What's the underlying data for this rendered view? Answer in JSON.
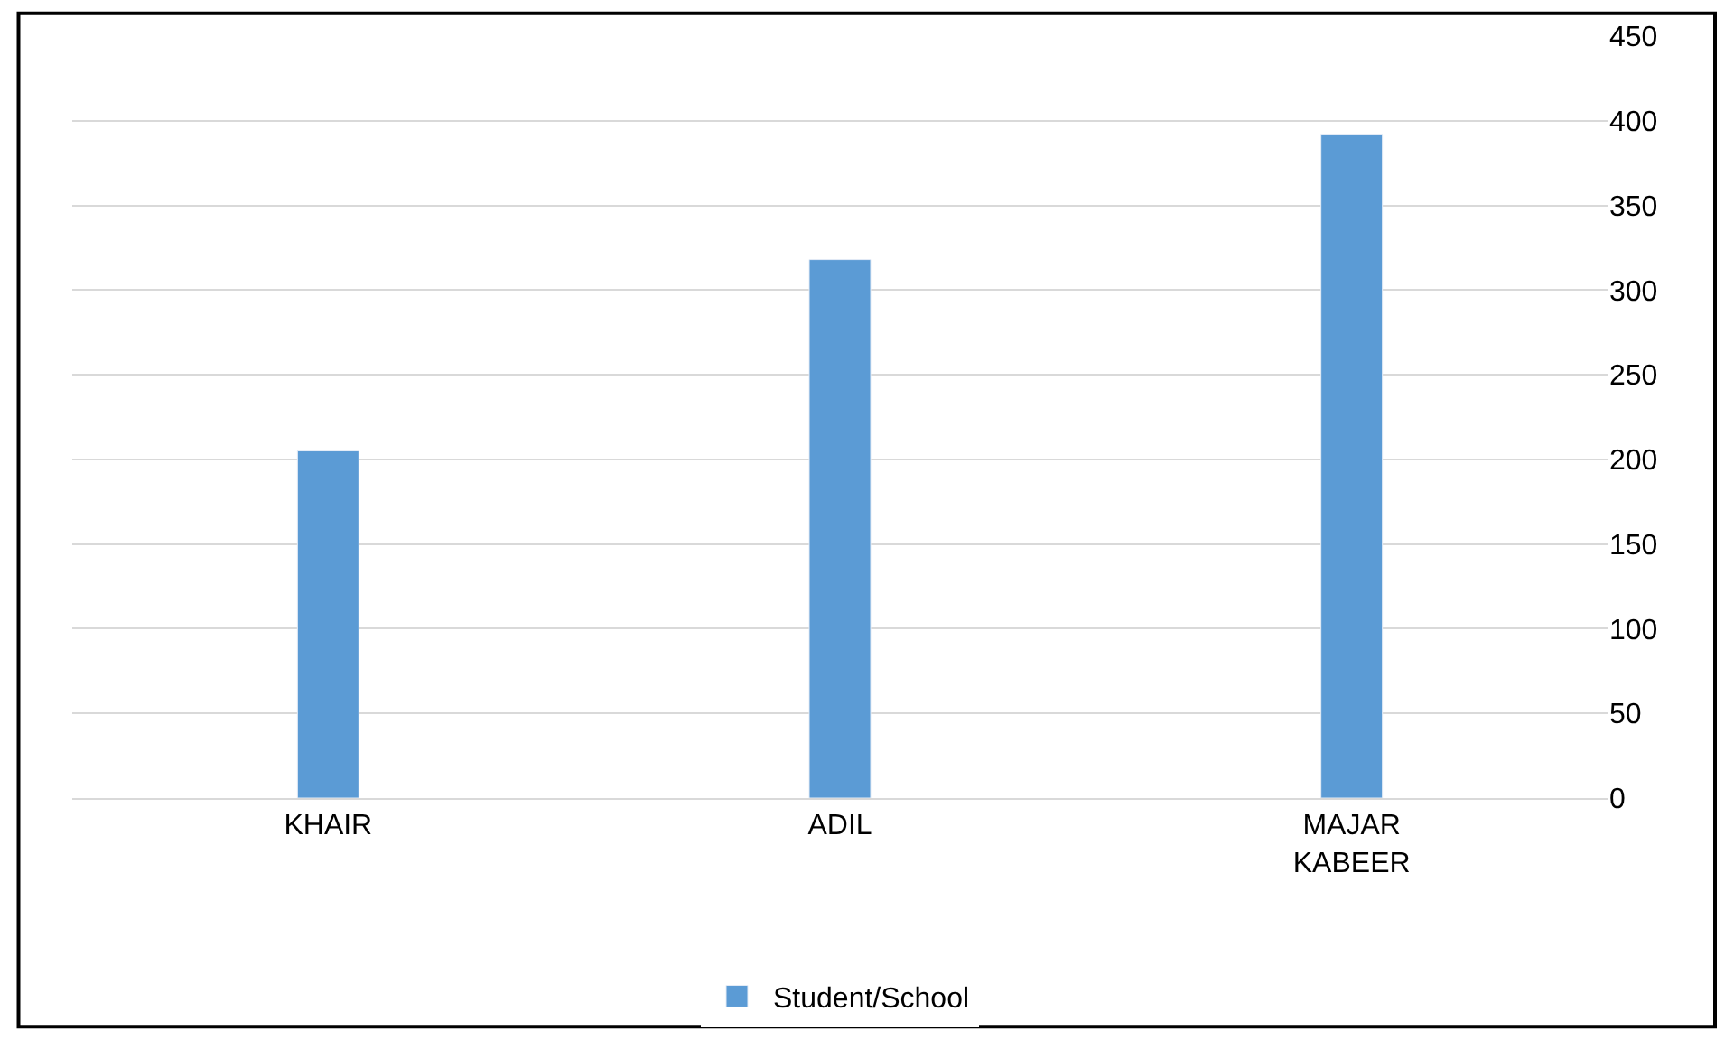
{
  "chart_data": {
    "type": "bar",
    "categories": [
      "KHAIR",
      "ADIL",
      "MAJAR KABEER"
    ],
    "series": [
      {
        "name": "Student/School",
        "color": "#5b9bd5",
        "values": [
          205,
          318,
          392
        ]
      }
    ],
    "ylim": [
      0,
      450
    ],
    "yticks": [
      0,
      50,
      100,
      150,
      200,
      250,
      300,
      350,
      400,
      450
    ],
    "grid": "y",
    "legend": "bottom"
  }
}
